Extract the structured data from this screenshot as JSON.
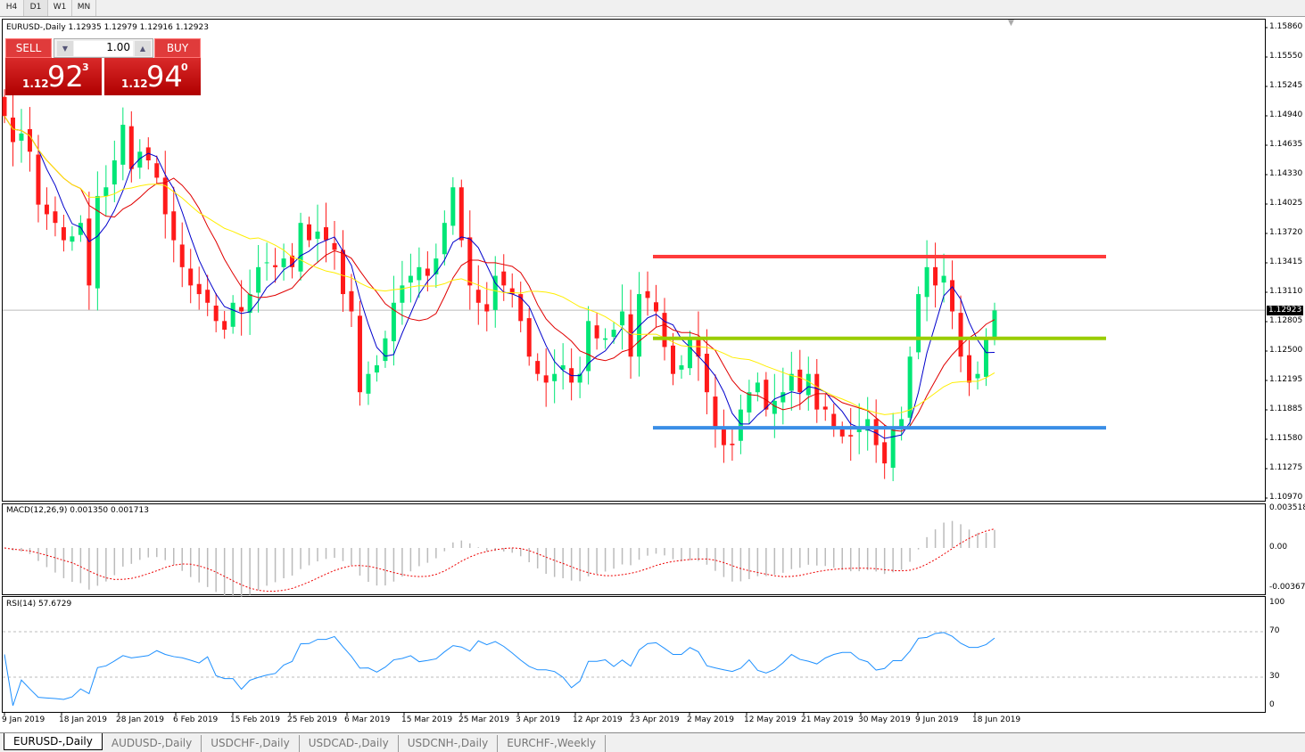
{
  "toolbar": {
    "timeframes": [
      "H4",
      "D1",
      "W1",
      "MN"
    ],
    "active": "D1"
  },
  "chart": {
    "header": "EURUSD-,Daily  1.12935 1.12979 1.12916 1.12923",
    "current_price": "1.12923"
  },
  "trade_panel": {
    "sell_label": "SELL",
    "buy_label": "BUY",
    "lot": "1.00",
    "sell": {
      "small": "1.12",
      "big": "92",
      "pip": "3"
    },
    "buy": {
      "small": "1.12",
      "big": "94",
      "pip": "0"
    }
  },
  "price_axis": [
    "1.15860",
    "1.15550",
    "1.15245",
    "1.14940",
    "1.14635",
    "1.14330",
    "1.14025",
    "1.13720",
    "1.13415",
    "1.13110",
    "1.12805",
    "1.12500",
    "1.12195",
    "1.11885",
    "1.11580",
    "1.11275",
    "1.10970"
  ],
  "date_axis": [
    "9 Jan 2019",
    "18 Jan 2019",
    "28 Jan 2019",
    "6 Feb 2019",
    "15 Feb 2019",
    "25 Feb 2019",
    "6 Mar 2019",
    "15 Mar 2019",
    "25 Mar 2019",
    "3 Apr 2019",
    "12 Apr 2019",
    "23 Apr 2019",
    "2 May 2019",
    "12 May 2019",
    "21 May 2019",
    "30 May 2019",
    "9 Jun 2019",
    "18 Jun 2019"
  ],
  "macd": {
    "label": "MACD(12,26,9) 0.001350 0.001713",
    "axis": [
      "0.003518",
      "0.00",
      "-0.00367"
    ]
  },
  "rsi": {
    "label": "RSI(14) 57.6729",
    "axis": [
      "100",
      "70",
      "30",
      "0"
    ]
  },
  "chart_data": {
    "type": "candlestick",
    "symbol": "EURUSD-",
    "timeframe": "Daily",
    "ylim": [
      1.1097,
      1.1586
    ],
    "closes": [
      1.1494,
      1.1467,
      1.1476,
      1.1457,
      1.1402,
      1.1392,
      1.1383,
      1.1365,
      1.1369,
      1.1383,
      1.1318,
      1.1411,
      1.142,
      1.1448,
      1.1485,
      1.1439,
      1.1457,
      1.1448,
      1.143,
      1.1392,
      1.1365,
      1.1337,
      1.1318,
      1.1309,
      1.13,
      1.1281,
      1.1272,
      1.13,
      1.1291,
      1.1309,
      1.1337,
      1.1342,
      1.1337,
      1.1346,
      1.1337,
      1.1383,
      1.1365,
      1.1374,
      1.1365,
      1.1355,
      1.1309,
      1.1291,
      1.1207,
      1.1226,
      1.1235,
      1.1263,
      1.13,
      1.1318,
      1.1328,
      1.1337,
      1.1328,
      1.1346,
      1.1383,
      1.142,
      1.1365,
      1.1318,
      1.13,
      1.1291,
      1.1328,
      1.1318,
      1.1309,
      1.1281,
      1.1244,
      1.1226,
      1.1217,
      1.1226,
      1.1235,
      1.1217,
      1.1226,
      1.1281,
      1.1263,
      1.1263,
      1.1272,
      1.1291,
      1.1244,
      1.1309,
      1.1305,
      1.1291,
      1.1254,
      1.1226,
      1.1235,
      1.1263,
      1.1244,
      1.1207,
      1.117,
      1.1152,
      1.1152,
      1.1189,
      1.1207,
      1.1217,
      1.1189,
      1.1198,
      1.1207,
      1.1226,
      1.1207,
      1.1226,
      1.1189,
      1.1189,
      1.117,
      1.1161,
      1.1161,
      1.117,
      1.1179,
      1.1152,
      1.1133,
      1.117,
      1.1179,
      1.1244,
      1.1309,
      1.1337,
      1.1318,
      1.1328,
      1.1291,
      1.1244,
      1.1217,
      1.1226,
      1.1263,
      1.1292
    ],
    "horizontal_levels": [
      {
        "price": 1.1348,
        "color": "#ff3b3b"
      },
      {
        "price": 1.1263,
        "color": "#9acd00"
      },
      {
        "price": 1.117,
        "color": "#3a8ee6"
      }
    ],
    "colors": {
      "bull": "#00e676",
      "bear": "#ff1a1a",
      "ma_fast": "#0000cc",
      "ma_mid": "#e00000",
      "ma_slow": "#ffee00"
    }
  },
  "tabs": [
    "EURUSD-,Daily",
    "AUDUSD-,Daily",
    "USDCHF-,Daily",
    "USDCAD-,Daily",
    "USDCNH-,Daily",
    "EURCHF-,Weekly"
  ],
  "active_tab": "EURUSD-,Daily"
}
